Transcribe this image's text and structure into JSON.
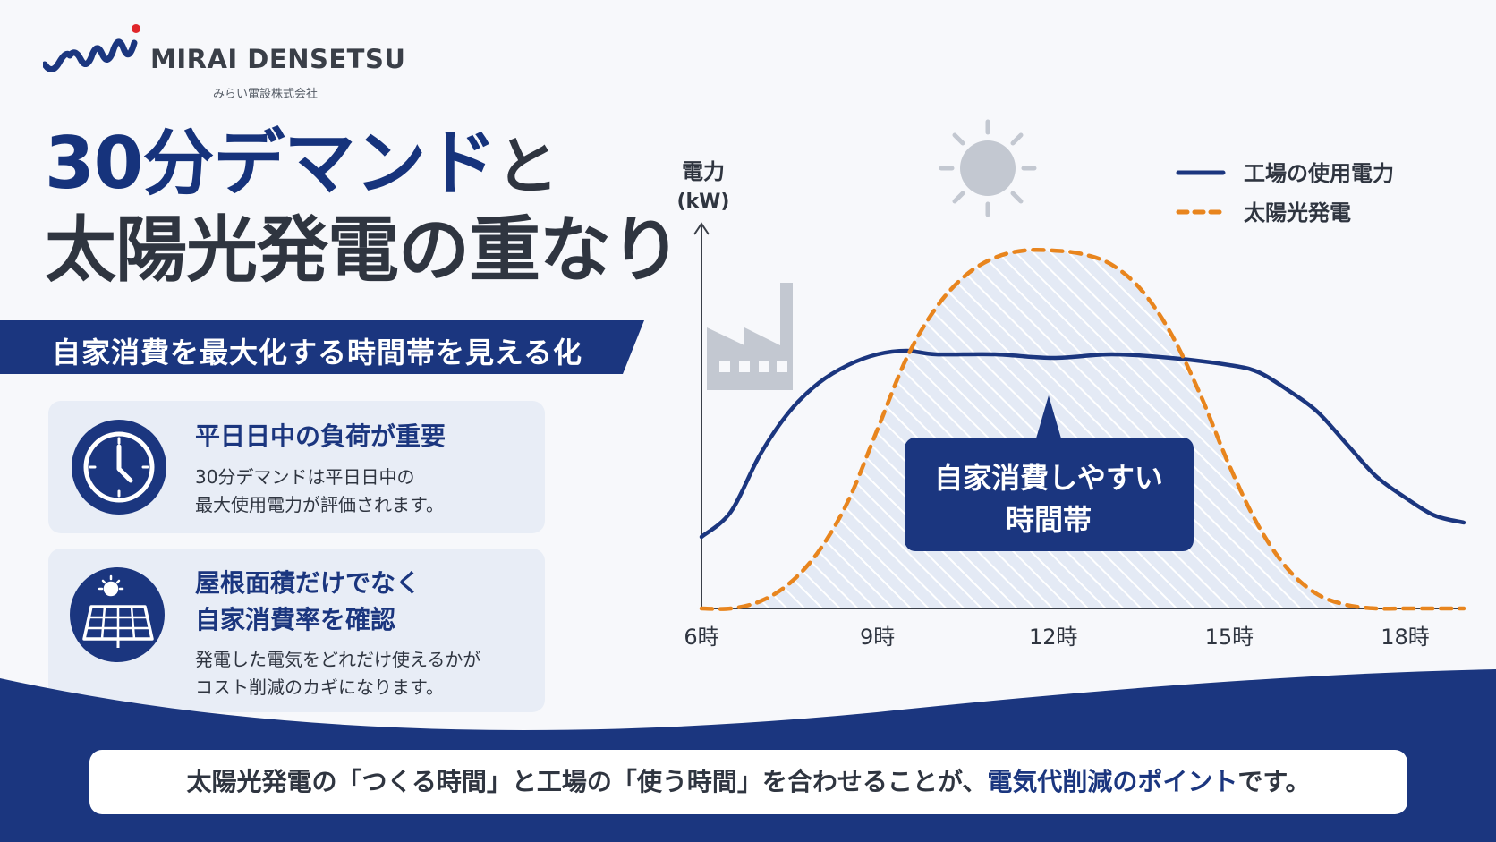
{
  "brand": {
    "name": "MIRAI DENSETSU",
    "subname": "みらい電設株式会社"
  },
  "title": {
    "line1_main": "30分デマンド",
    "line1_suffix": "と",
    "line2": "太陽光発電の重なり"
  },
  "banner": "自家消費を最大化する時間帯を見える化",
  "cards": [
    {
      "icon": "clock-icon",
      "title": "平日日中の負荷が重要",
      "body": [
        "30分デマンドは平日日中の",
        "最大使用電力が評価されます。"
      ]
    },
    {
      "icon": "solar-panel-icon",
      "title": [
        "屋根面積だけでなく",
        "自家消費率を確認"
      ],
      "body": [
        "発電した電気をどれだけ使えるかが",
        "コスト削減のカギになります。"
      ]
    }
  ],
  "chart_data": {
    "type": "line",
    "ylabel": [
      "電力",
      "(kW)"
    ],
    "x_ticks": [
      "6時",
      "9時",
      "12時",
      "15時",
      "18時"
    ],
    "xlim": [
      6,
      19
    ],
    "ylim": [
      0,
      100
    ],
    "legend_position": "top-right",
    "series": [
      {
        "name": "工場の使用電力",
        "style": "solid",
        "color": "#1b367f",
        "x": [
          6,
          6.5,
          7,
          7.5,
          8,
          8.5,
          9,
          9.5,
          10,
          11,
          12,
          13,
          14,
          15,
          15.5,
          16,
          16.5,
          17,
          17.5,
          18,
          18.5,
          19
        ],
        "y": [
          20,
          27,
          43,
          55,
          63,
          68,
          71,
          72,
          71,
          71,
          70,
          71,
          70,
          68,
          66,
          61,
          55,
          46,
          37,
          31,
          26,
          24
        ]
      },
      {
        "name": "太陽光発電",
        "style": "dashed",
        "color": "#e8851e",
        "x": [
          6,
          6.5,
          7,
          7.5,
          8,
          8.5,
          9,
          9.5,
          10,
          10.5,
          11,
          11.5,
          12,
          12.5,
          13,
          13.5,
          14,
          14.5,
          15,
          15.5,
          16,
          16.5,
          17,
          17.5,
          18,
          18.5,
          19
        ],
        "y": [
          0,
          0,
          2,
          7,
          16,
          30,
          50,
          70,
          84,
          93,
          98,
          100,
          100,
          99,
          96,
          89,
          77,
          60,
          40,
          23,
          11,
          4,
          1,
          0,
          0,
          0,
          0
        ]
      }
    ],
    "annotation": [
      "自家消費しやすい",
      "時間帯"
    ]
  },
  "bottom": {
    "before": "太陽光発電の「つくる時間」と工場の「使う時間」を合わせることが、",
    "highlight": "電気代削減のポイント",
    "after": "です。"
  },
  "colors": {
    "navy": "#1b367f",
    "orange": "#e8851e",
    "accent_red": "#e0262a"
  }
}
